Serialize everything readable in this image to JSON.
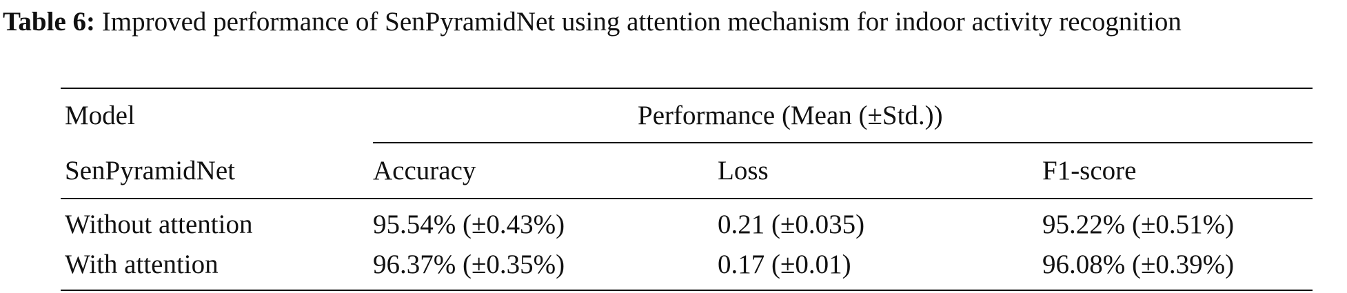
{
  "caption": {
    "label": "Table 6:",
    "text": "Improved performance of SenPyramidNet using attention mechanism for indoor activity recognition"
  },
  "table": {
    "header": {
      "model": "Model",
      "group": "Performance (Mean (±Std.))"
    },
    "subheader": [
      "SenPyramidNet",
      "Accuracy",
      "Loss",
      "F1-score"
    ],
    "rows": [
      [
        "Without attention",
        "95.54% (±0.43%)",
        "0.21 (±0.035)",
        "95.22% (±0.51%)"
      ],
      [
        "With attention",
        "96.37% (±0.35%)",
        "0.17 (±0.01)",
        "96.08% (±0.39%)"
      ]
    ]
  }
}
